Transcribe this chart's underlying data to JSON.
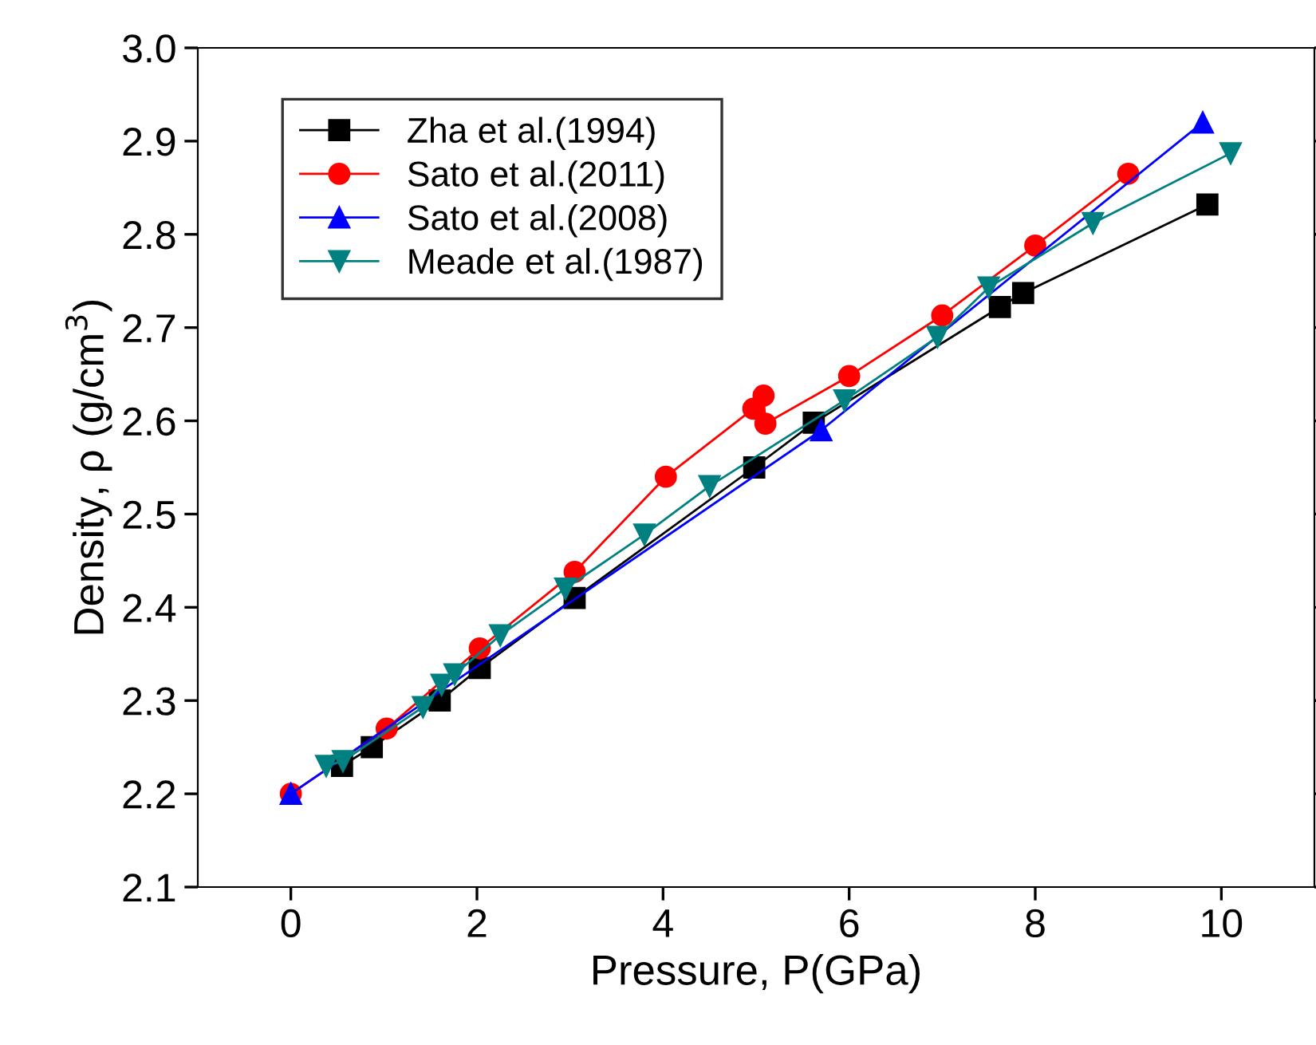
{
  "chart_data": {
    "type": "line",
    "xlabel": "Pressure, P(GPa)",
    "ylabel": "Density, ρ (g/cm$^{3}$)",
    "xlim": [
      -1,
      11
    ],
    "xticks": [
      0,
      2,
      4,
      6,
      8,
      10
    ],
    "ylim": [
      2.1,
      3.0
    ],
    "yticks": [
      2.1,
      2.2,
      2.3,
      2.4,
      2.5,
      2.6,
      2.7,
      2.8,
      2.9,
      {
        "value": 3,
        "label": "3.0"
      }
    ],
    "legend": "top left",
    "grid": false,
    "series": [
      {
        "name": "Zha et al.(1994)",
        "color": "#000000",
        "marker": "square",
        "x": [
          0.55,
          0.87,
          1.6,
          2.03,
          3.05,
          4.98,
          5.62,
          7.62,
          7.87,
          9.85
        ],
        "values": [
          2.23,
          2.25,
          2.3,
          2.335,
          2.41,
          2.55,
          2.598,
          2.722,
          2.737,
          2.832
        ]
      },
      {
        "name": "Sato et al.(2011)",
        "color": "#ff0000",
        "marker": "circle",
        "x": [
          0,
          1.03,
          2.03,
          3.05,
          4.03,
          4.97,
          5.08,
          5.1,
          6,
          7,
          8,
          9
        ],
        "values": [
          2.2,
          2.27,
          2.356,
          2.438,
          2.54,
          2.613,
          2.627,
          2.597,
          2.648,
          2.713,
          2.788,
          2.865
        ]
      },
      {
        "name": "Sato et al.(2008)",
        "color": "#0000ff",
        "marker": "triangle",
        "x": [
          0,
          5.7,
          9.8
        ],
        "values": [
          2.2,
          2.59,
          2.92
        ]
      },
      {
        "name": "Meade et al.(1987)",
        "color": "#008080",
        "marker": "triangle_down",
        "x": [
          0.38,
          0.56,
          1.42,
          1.62,
          1.76,
          2.25,
          2.95,
          3.8,
          4.5,
          5.95,
          6.95,
          7.5,
          8.62,
          10.1
        ],
        "values": [
          2.23,
          2.235,
          2.293,
          2.317,
          2.328,
          2.37,
          2.42,
          2.478,
          2.53,
          2.622,
          2.69,
          2.743,
          2.812,
          2.887
        ]
      }
    ]
  }
}
